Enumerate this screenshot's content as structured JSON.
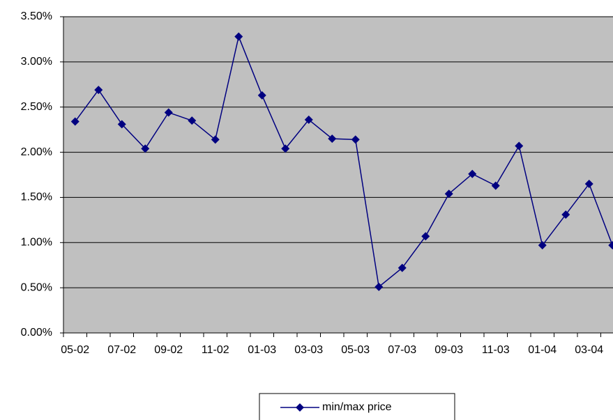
{
  "chart_data": {
    "type": "line",
    "categories": [
      "05-02",
      null,
      "07-02",
      null,
      "09-02",
      null,
      "11-02",
      null,
      "01-03",
      null,
      "03-03",
      null,
      "05-03",
      null,
      "07-03",
      null,
      "09-03",
      null,
      "11-03",
      null,
      "01-04",
      null,
      "03-04",
      null
    ],
    "series": [
      {
        "name": "min/max price",
        "color": "#000080",
        "values": [
          2.34,
          2.69,
          2.31,
          2.04,
          2.44,
          2.35,
          2.14,
          3.28,
          2.63,
          2.04,
          2.36,
          2.15,
          2.14,
          0.51,
          0.72,
          1.07,
          1.54,
          1.76,
          1.63,
          2.07,
          0.97,
          1.31,
          1.65,
          0.97
        ]
      }
    ],
    "ylim": [
      0,
      3.5
    ],
    "yticks": [
      {
        "value": 0,
        "label": "0.00%"
      },
      {
        "value": 0.5,
        "label": "0.50%"
      },
      {
        "value": 1,
        "label": "1.00%"
      },
      {
        "value": 1.5,
        "label": "1.50%"
      },
      {
        "value": 2,
        "label": "2.00%"
      },
      {
        "value": 2.5,
        "label": "2.50%"
      },
      {
        "value": 3,
        "label": "3.00%"
      },
      {
        "value": 3.5,
        "label": "3.50%"
      }
    ],
    "grid": true,
    "background": "#c0c0c0",
    "legend": "bottom"
  }
}
